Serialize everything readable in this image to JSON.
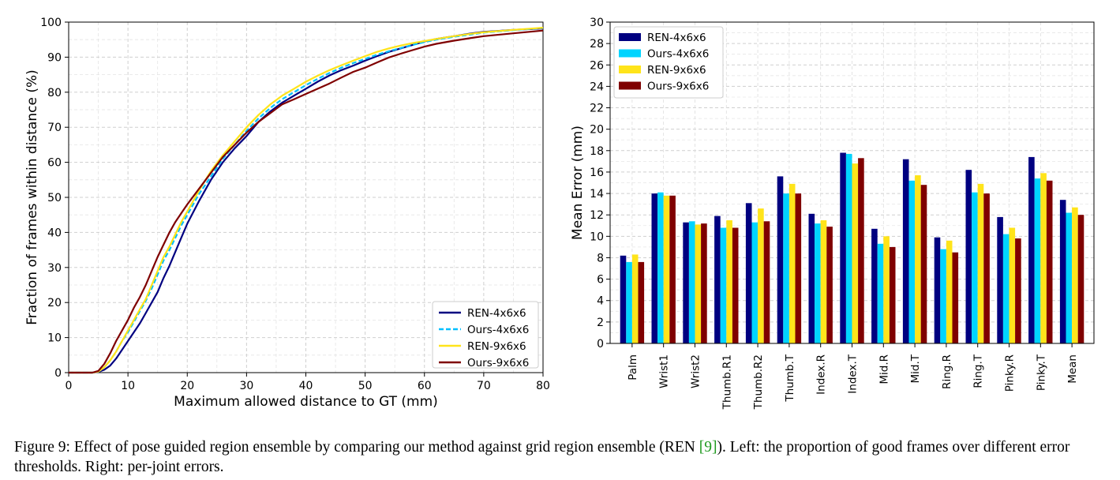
{
  "caption": {
    "label": "Figure 9:",
    "text1": "Effect of pose guided region ensemble by comparing our method against grid region ensemble (REN ",
    "cite": "[9]",
    "text2": "). Left: the proportion of good frames over different error thresholds. Right: per-joint errors."
  },
  "chart_data": [
    {
      "type": "line",
      "title": "",
      "xlabel": "Maximum allowed distance to GT (mm)",
      "ylabel": "Fraction of frames within distance (%)",
      "xlim": [
        0,
        80
      ],
      "ylim": [
        0,
        100
      ],
      "xticks": [
        0,
        10,
        20,
        30,
        40,
        50,
        60,
        70,
        80
      ],
      "yticks": [
        0,
        10,
        20,
        30,
        40,
        50,
        60,
        70,
        80,
        90,
        100
      ],
      "grid": true,
      "legend": "lower-right",
      "series": [
        {
          "name": "REN-4x6x6",
          "color": "#000080",
          "style": "solid",
          "points": [
            [
              0,
              0
            ],
            [
              4,
              0
            ],
            [
              5,
              0.2
            ],
            [
              6,
              0.8
            ],
            [
              7,
              2
            ],
            [
              8,
              4
            ],
            [
              9,
              6.5
            ],
            [
              10,
              9
            ],
            [
              11,
              11.5
            ],
            [
              12,
              14
            ],
            [
              13,
              17
            ],
            [
              14,
              20
            ],
            [
              15,
              23
            ],
            [
              16,
              27
            ],
            [
              17,
              30.5
            ],
            [
              18,
              34.5
            ],
            [
              19,
              38.5
            ],
            [
              20,
              42.5
            ],
            [
              22,
              49
            ],
            [
              24,
              55
            ],
            [
              26,
              60
            ],
            [
              28,
              64
            ],
            [
              30,
              67.5
            ],
            [
              32,
              71.5
            ],
            [
              34,
              74.5
            ],
            [
              36,
              77
            ],
            [
              38,
              79
            ],
            [
              40,
              81
            ],
            [
              42,
              83
            ],
            [
              44,
              84.8
            ],
            [
              46,
              86.3
            ],
            [
              48,
              87.6
            ],
            [
              50,
              89
            ],
            [
              52,
              90.3
            ],
            [
              54,
              91.5
            ],
            [
              56,
              92.5
            ],
            [
              58,
              93.5
            ],
            [
              60,
              94.5
            ],
            [
              62,
              95.2
            ],
            [
              65,
              96
            ],
            [
              68,
              96.8
            ],
            [
              70,
              97.2
            ],
            [
              75,
              97.8
            ],
            [
              80,
              98.2
            ]
          ]
        },
        {
          "name": "Ours-4x6x6",
          "color": "#00bfff",
          "style": "dashed",
          "points": [
            [
              0,
              0
            ],
            [
              4,
              0
            ],
            [
              5,
              0.3
            ],
            [
              6,
              1.5
            ],
            [
              7,
              3.5
            ],
            [
              8,
              6
            ],
            [
              9,
              9
            ],
            [
              10,
              11.5
            ],
            [
              11,
              14.5
            ],
            [
              12,
              17.5
            ],
            [
              13,
              20.5
            ],
            [
              14,
              24
            ],
            [
              15,
              28
            ],
            [
              16,
              32
            ],
            [
              17,
              35
            ],
            [
              18,
              38.5
            ],
            [
              19,
              42
            ],
            [
              20,
              45
            ],
            [
              22,
              51
            ],
            [
              24,
              56
            ],
            [
              26,
              61
            ],
            [
              28,
              65
            ],
            [
              30,
              69
            ],
            [
              32,
              72.5
            ],
            [
              34,
              75.5
            ],
            [
              36,
              78
            ],
            [
              38,
              80
            ],
            [
              40,
              82
            ],
            [
              42,
              83.8
            ],
            [
              44,
              85.5
            ],
            [
              46,
              87
            ],
            [
              48,
              88.3
            ],
            [
              50,
              89.5
            ],
            [
              52,
              90.7
            ],
            [
              54,
              91.7
            ],
            [
              56,
              92.6
            ],
            [
              58,
              93.5
            ],
            [
              60,
              94.3
            ],
            [
              62,
              95
            ],
            [
              65,
              95.8
            ],
            [
              68,
              96.5
            ],
            [
              70,
              97
            ],
            [
              75,
              97.7
            ],
            [
              80,
              98.3
            ]
          ]
        },
        {
          "name": "REN-9x6x6",
          "color": "#ffe41a",
          "style": "solid",
          "points": [
            [
              0,
              0
            ],
            [
              4,
              0
            ],
            [
              5,
              0.3
            ],
            [
              6,
              1.5
            ],
            [
              7,
              3.5
            ],
            [
              8,
              6
            ],
            [
              9,
              9
            ],
            [
              10,
              12
            ],
            [
              11,
              15
            ],
            [
              12,
              18
            ],
            [
              13,
              21
            ],
            [
              14,
              25
            ],
            [
              15,
              29
            ],
            [
              16,
              33
            ],
            [
              17,
              36
            ],
            [
              18,
              39.5
            ],
            [
              19,
              43
            ],
            [
              20,
              46
            ],
            [
              22,
              52
            ],
            [
              24,
              57.5
            ],
            [
              26,
              62
            ],
            [
              28,
              66
            ],
            [
              30,
              70
            ],
            [
              32,
              73.5
            ],
            [
              34,
              76.5
            ],
            [
              36,
              79
            ],
            [
              38,
              81
            ],
            [
              40,
              83
            ],
            [
              42,
              84.7
            ],
            [
              44,
              86.3
            ],
            [
              46,
              87.7
            ],
            [
              48,
              89
            ],
            [
              50,
              90.3
            ],
            [
              52,
              91.5
            ],
            [
              54,
              92.5
            ],
            [
              56,
              93.3
            ],
            [
              58,
              94
            ],
            [
              60,
              94.6
            ],
            [
              62,
              95.2
            ],
            [
              65,
              96
            ],
            [
              68,
              96.7
            ],
            [
              70,
              97.1
            ],
            [
              75,
              97.8
            ],
            [
              80,
              98.4
            ]
          ]
        },
        {
          "name": "Ours-9x6x6",
          "color": "#7f0000",
          "style": "solid",
          "points": [
            [
              0,
              0
            ],
            [
              4,
              0
            ],
            [
              5,
              0.5
            ],
            [
              6,
              2.5
            ],
            [
              7,
              5.5
            ],
            [
              8,
              9
            ],
            [
              9,
              12
            ],
            [
              10,
              15
            ],
            [
              11,
              18.5
            ],
            [
              12,
              21.5
            ],
            [
              13,
              25
            ],
            [
              14,
              29
            ],
            [
              15,
              33
            ],
            [
              16,
              36.5
            ],
            [
              17,
              40
            ],
            [
              18,
              43
            ],
            [
              19,
              45.5
            ],
            [
              20,
              48
            ],
            [
              22,
              52.5
            ],
            [
              24,
              57
            ],
            [
              26,
              61.5
            ],
            [
              28,
              65
            ],
            [
              30,
              68.5
            ],
            [
              32,
              71.5
            ],
            [
              34,
              74
            ],
            [
              36,
              76.5
            ],
            [
              38,
              78
            ],
            [
              40,
              79.5
            ],
            [
              42,
              81
            ],
            [
              44,
              82.5
            ],
            [
              46,
              84.2
            ],
            [
              48,
              85.8
            ],
            [
              50,
              87
            ],
            [
              52,
              88.5
            ],
            [
              54,
              89.9
            ],
            [
              56,
              91
            ],
            [
              58,
              92
            ],
            [
              60,
              93
            ],
            [
              62,
              93.8
            ],
            [
              65,
              94.7
            ],
            [
              68,
              95.5
            ],
            [
              70,
              96
            ],
            [
              75,
              96.8
            ],
            [
              80,
              97.6
            ]
          ]
        }
      ]
    },
    {
      "type": "bar",
      "title": "",
      "xlabel": "",
      "ylabel": "Mean Error (mm)",
      "ylim": [
        0,
        30
      ],
      "yticks": [
        0,
        2,
        4,
        6,
        8,
        10,
        12,
        14,
        16,
        18,
        20,
        22,
        24,
        26,
        28,
        30
      ],
      "grid": true,
      "legend": "upper-left",
      "categories": [
        "Palm",
        "Wrist1",
        "Wrist2",
        "Thumb.R1",
        "Thumb.R2",
        "Thumb.T",
        "Index.R",
        "Index.T",
        "Mid.R",
        "Mid.T",
        "Ring.R",
        "Ring.T",
        "Pinky.R",
        "Pinky.T",
        "Mean"
      ],
      "series": [
        {
          "name": "REN-4x6x6",
          "color": "#000080",
          "values": [
            8.2,
            14.0,
            11.3,
            11.9,
            13.1,
            15.6,
            12.1,
            17.8,
            10.7,
            17.2,
            9.9,
            16.2,
            11.8,
            17.4,
            13.4
          ]
        },
        {
          "name": "Ours-4x6x6",
          "color": "#00d4ff",
          "values": [
            7.6,
            14.1,
            11.4,
            10.8,
            11.3,
            14.0,
            11.2,
            17.7,
            9.3,
            15.2,
            8.8,
            14.1,
            10.2,
            15.4,
            12.2
          ]
        },
        {
          "name": "REN-9x6x6",
          "color": "#ffe41a",
          "values": [
            8.3,
            13.8,
            11.1,
            11.5,
            12.6,
            14.9,
            11.5,
            16.8,
            10.0,
            15.7,
            9.6,
            14.9,
            10.8,
            15.9,
            12.7
          ]
        },
        {
          "name": "Ours-9x6x6",
          "color": "#7f0000",
          "values": [
            7.6,
            13.8,
            11.2,
            10.8,
            11.4,
            14.0,
            10.9,
            17.3,
            9.0,
            14.8,
            8.5,
            14.0,
            9.8,
            15.2,
            12.0
          ]
        }
      ]
    }
  ]
}
